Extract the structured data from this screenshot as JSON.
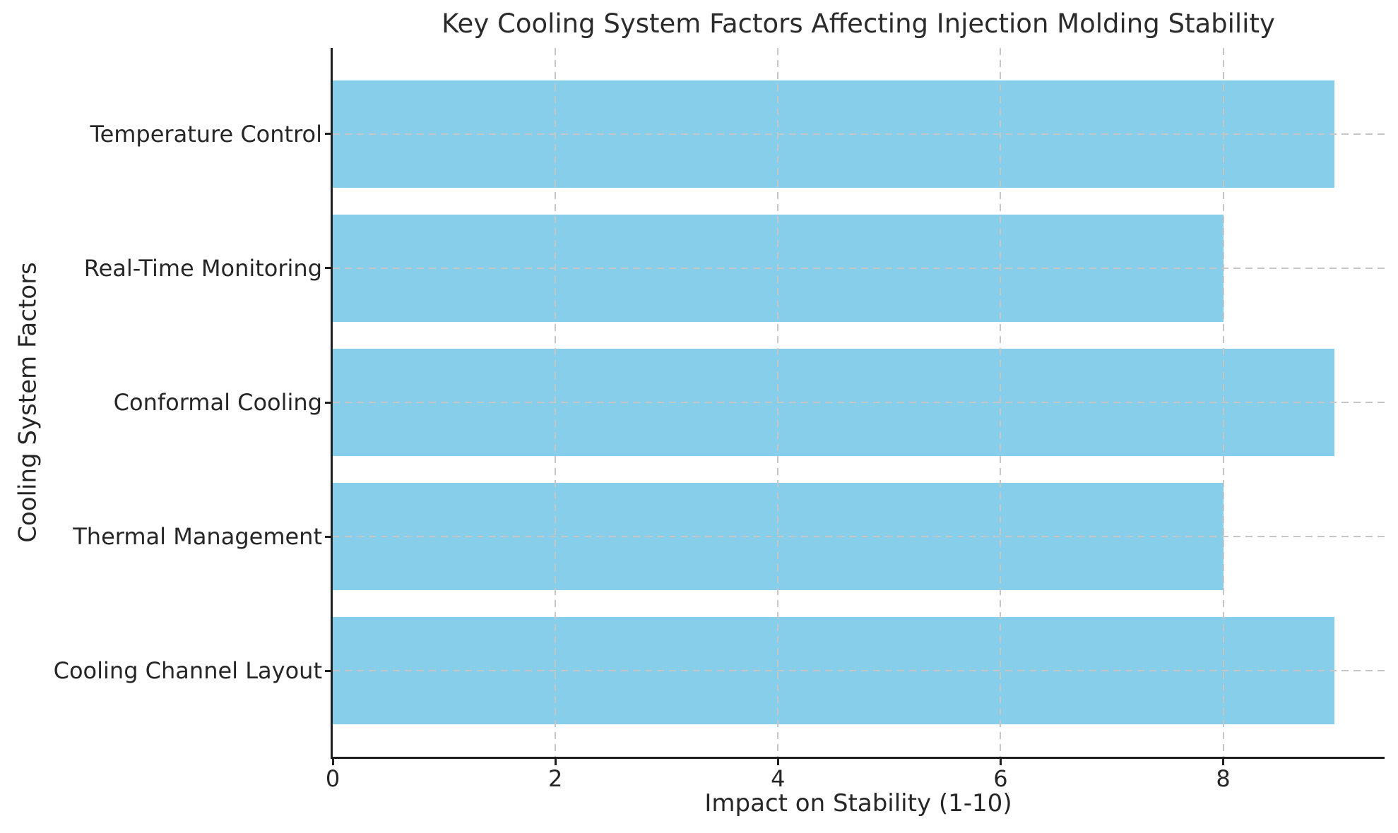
{
  "chart_data": {
    "type": "bar",
    "orientation": "horizontal",
    "title": "Key Cooling System Factors Affecting Injection Molding Stability",
    "xlabel": "Impact on Stability (1-10)",
    "ylabel": "Cooling System Factors",
    "categories": [
      "Temperature Control",
      "Real-Time Monitoring",
      "Conformal Cooling",
      "Thermal Management",
      "Cooling Channel Layout"
    ],
    "values": [
      9,
      8,
      9,
      8,
      9
    ],
    "xticks": [
      0,
      2,
      4,
      6,
      8
    ],
    "xlim": [
      0,
      9.45
    ],
    "bar_color": "#87CEEB",
    "grid": {
      "visible": true,
      "axis": "both",
      "style": "dashed",
      "color": "#c6c6c6",
      "on_top_of_bars": true
    },
    "text_color": "#262626",
    "spine_color": "#1f1f1f",
    "background_color": "#ffffff"
  }
}
